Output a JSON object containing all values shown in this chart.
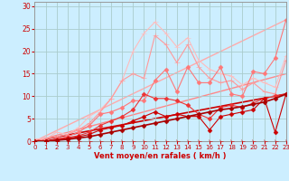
{
  "bg_color": "#cceeff",
  "grid_color": "#aacccc",
  "xlabel": "Vent moyen/en rafales ( km/h )",
  "xlim": [
    0,
    23
  ],
  "ylim": [
    0,
    31
  ],
  "yticks": [
    0,
    5,
    10,
    15,
    20,
    25,
    30
  ],
  "xticks": [
    0,
    1,
    2,
    3,
    4,
    5,
    6,
    7,
    8,
    9,
    10,
    11,
    12,
    13,
    14,
    15,
    16,
    17,
    18,
    19,
    20,
    21,
    22,
    23
  ],
  "series": [
    {
      "x": [
        0,
        1,
        2,
        3,
        4,
        5,
        6,
        7,
        8,
        9,
        10,
        11,
        12,
        13,
        14,
        15,
        16,
        17,
        18,
        19,
        20,
        21,
        22,
        23
      ],
      "y": [
        0,
        0,
        0,
        0,
        0,
        0,
        0,
        0,
        0,
        0,
        0,
        0,
        0,
        0,
        0,
        0,
        0,
        0,
        0,
        0,
        0,
        0,
        0,
        0
      ],
      "color": "#dd0000",
      "lw": 0.7,
      "marker": "4",
      "ms": 4,
      "ls": "--",
      "zorder": 3
    },
    {
      "x": [
        0,
        23
      ],
      "y": [
        0,
        27
      ],
      "color": "#ffaaaa",
      "lw": 1.0,
      "marker": null,
      "ms": 0,
      "ls": "-",
      "zorder": 1
    },
    {
      "x": [
        0,
        23
      ],
      "y": [
        0,
        15
      ],
      "color": "#ff8888",
      "lw": 1.0,
      "marker": null,
      "ms": 0,
      "ls": "-",
      "zorder": 1
    },
    {
      "x": [
        0,
        23
      ],
      "y": [
        0,
        10.5
      ],
      "color": "#cc0000",
      "lw": 1.2,
      "marker": null,
      "ms": 0,
      "ls": "-",
      "zorder": 1
    },
    {
      "x": [
        0,
        1,
        2,
        3,
        4,
        5,
        6,
        7,
        8,
        9,
        10,
        11,
        12,
        13,
        14,
        15,
        16,
        17,
        18,
        19,
        20,
        21,
        22,
        23
      ],
      "y": [
        0.5,
        0.5,
        2.0,
        1.5,
        3.0,
        5.5,
        7.0,
        9.5,
        13.5,
        20.0,
        24.0,
        26.5,
        24.0,
        21.0,
        23.0,
        18.0,
        16.0,
        15.0,
        14.5,
        12.5,
        14.0,
        13.0,
        12.0,
        19.0
      ],
      "color": "#ffbbbb",
      "lw": 0.8,
      "marker": "+",
      "ms": 4,
      "ls": "-",
      "zorder": 2
    },
    {
      "x": [
        0,
        1,
        2,
        3,
        4,
        5,
        6,
        7,
        8,
        9,
        10,
        11,
        12,
        13,
        14,
        15,
        16,
        17,
        18,
        19,
        20,
        21,
        22,
        23
      ],
      "y": [
        0.0,
        0.5,
        1.0,
        1.5,
        2.5,
        4.0,
        6.5,
        9.5,
        13.5,
        15.0,
        14.0,
        23.5,
        21.5,
        17.5,
        21.5,
        16.5,
        14.0,
        13.0,
        13.5,
        11.5,
        13.0,
        11.0,
        10.5,
        18.0
      ],
      "color": "#ff9999",
      "lw": 0.8,
      "marker": "+",
      "ms": 4,
      "ls": "-",
      "zorder": 2
    },
    {
      "x": [
        0,
        1,
        2,
        3,
        4,
        5,
        6,
        7,
        8,
        9,
        10,
        11,
        12,
        13,
        14,
        15,
        16,
        17,
        18,
        19,
        20,
        21,
        22,
        23
      ],
      "y": [
        0.0,
        0.0,
        0.5,
        1.0,
        2.0,
        3.5,
        6.0,
        6.5,
        7.5,
        9.0,
        9.0,
        13.5,
        16.0,
        11.0,
        16.5,
        13.0,
        13.0,
        16.5,
        10.5,
        10.0,
        15.5,
        15.0,
        18.5,
        27.0
      ],
      "color": "#ff7777",
      "lw": 0.8,
      "marker": "D",
      "ms": 2.5,
      "ls": "-",
      "zorder": 2
    },
    {
      "x": [
        0,
        1,
        2,
        3,
        4,
        5,
        6,
        7,
        8,
        9,
        10,
        11,
        12,
        13,
        14,
        15,
        16,
        17,
        18,
        19,
        20,
        21,
        22,
        23
      ],
      "y": [
        0.0,
        0.0,
        0.5,
        0.8,
        1.2,
        2.0,
        3.5,
        4.5,
        5.5,
        7.0,
        10.5,
        9.5,
        9.5,
        9.0,
        8.0,
        6.0,
        5.0,
        7.5,
        8.0,
        7.5,
        8.5,
        9.5,
        10.0,
        10.5
      ],
      "color": "#ee3333",
      "lw": 0.8,
      "marker": "D",
      "ms": 2.5,
      "ls": "-",
      "zorder": 2
    },
    {
      "x": [
        0,
        1,
        2,
        3,
        4,
        5,
        6,
        7,
        8,
        9,
        10,
        11,
        12,
        13,
        14,
        15,
        16,
        17,
        18,
        19,
        20,
        21,
        22,
        23
      ],
      "y": [
        0.0,
        0.0,
        0.3,
        0.6,
        1.0,
        1.5,
        2.5,
        3.0,
        3.5,
        4.5,
        5.5,
        6.5,
        5.5,
        6.0,
        5.5,
        5.5,
        2.5,
        5.5,
        6.0,
        6.5,
        7.0,
        9.5,
        2.0,
        10.5
      ],
      "color": "#cc0000",
      "lw": 0.8,
      "marker": "D",
      "ms": 2.5,
      "ls": "-",
      "zorder": 2
    },
    {
      "x": [
        0,
        1,
        2,
        3,
        4,
        5,
        6,
        7,
        8,
        9,
        10,
        11,
        12,
        13,
        14,
        15,
        16,
        17,
        18,
        19,
        20,
        21,
        22,
        23
      ],
      "y": [
        0.0,
        0.0,
        0.2,
        0.4,
        0.7,
        1.0,
        1.5,
        2.0,
        2.5,
        3.0,
        3.5,
        4.0,
        4.5,
        5.0,
        5.5,
        6.0,
        6.5,
        7.0,
        7.3,
        7.7,
        8.2,
        8.7,
        9.5,
        10.5
      ],
      "color": "#aa0000",
      "lw": 1.2,
      "marker": "D",
      "ms": 2.5,
      "ls": "-",
      "zorder": 3
    }
  ]
}
